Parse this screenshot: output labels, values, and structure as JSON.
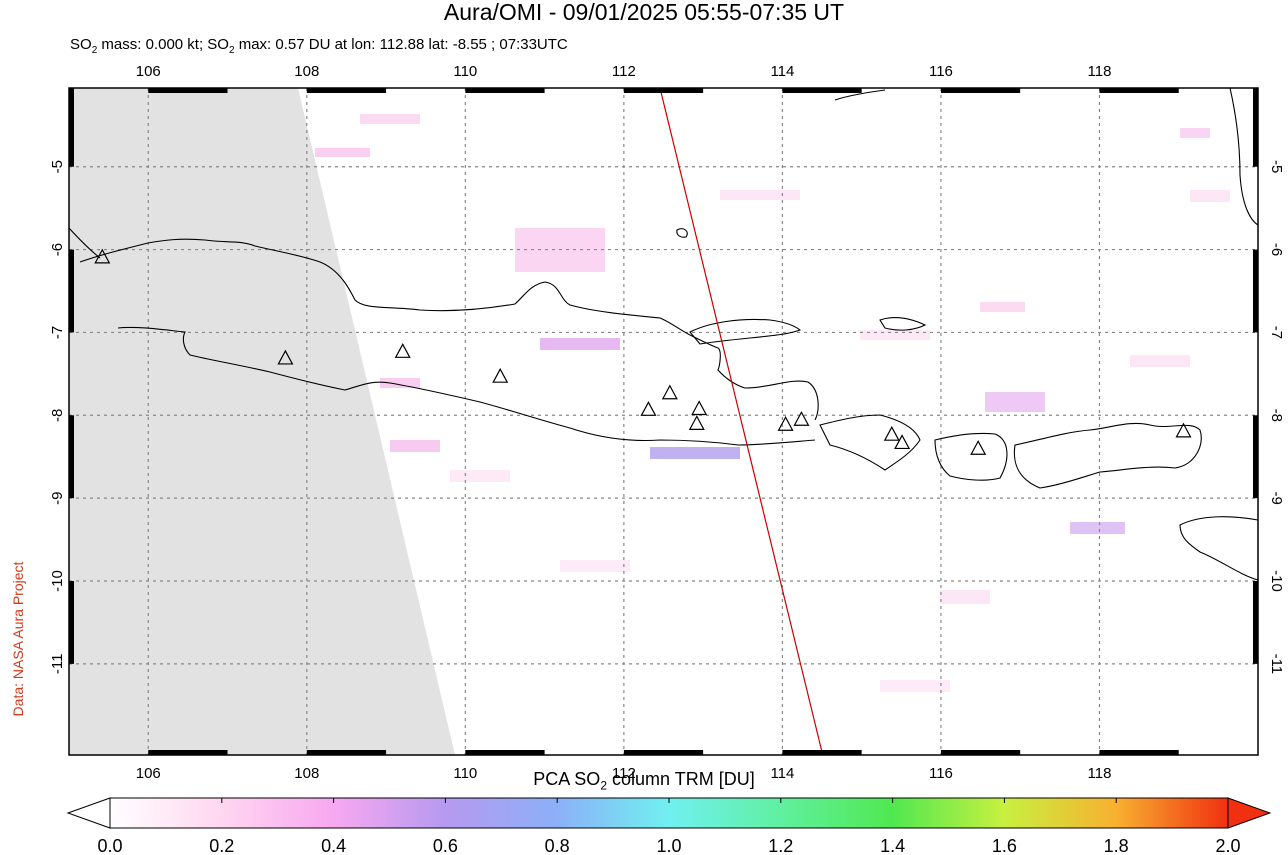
{
  "title": "Aura/OMI - 09/01/2025 05:55-07:35 UT",
  "subtitle": {
    "prefix": "SO",
    "sub": "2",
    "mid": " mass: 0.000 kt; SO",
    "sub2": "2",
    "suffix": " max: 0.57 DU at lon: 112.88 lat: -8.55 ; 07:33UTC"
  },
  "credit": "Data: NASA Aura Project",
  "colorbar": {
    "label_prefix": "PCA SO",
    "label_sub": "2",
    "label_suffix": " column TRM [DU]",
    "ticks": [
      "0.0",
      "0.2",
      "0.4",
      "0.6",
      "0.8",
      "1.0",
      "1.2",
      "1.4",
      "1.6",
      "1.8",
      "2.0"
    ],
    "colors": [
      "#ffffff",
      "#ffd6f0",
      "#f7a8f0",
      "#b69af0",
      "#8cb0f8",
      "#70f0f0",
      "#60f0a0",
      "#50e850",
      "#c8f040",
      "#f8b030",
      "#f03010"
    ]
  },
  "map": {
    "lon_ticks": [
      "106",
      "108",
      "110",
      "112",
      "114",
      "116",
      "118"
    ],
    "lat_ticks": [
      "-5",
      "-6",
      "-7",
      "-8",
      "-9",
      "-10",
      "-11"
    ],
    "lon_range": [
      105,
      120
    ],
    "lat_range": [
      -12.1,
      -4.05
    ],
    "volcanoes": [
      [
        105.42,
        -6.1
      ],
      [
        107.73,
        -7.32
      ],
      [
        109.21,
        -7.24
      ],
      [
        110.44,
        -7.54
      ],
      [
        112.31,
        -7.94
      ],
      [
        112.58,
        -7.74
      ],
      [
        112.95,
        -7.93
      ],
      [
        112.92,
        -8.11
      ],
      [
        114.04,
        -8.12
      ],
      [
        114.24,
        -8.06
      ],
      [
        115.38,
        -8.24
      ],
      [
        115.51,
        -8.34
      ],
      [
        116.47,
        -8.41
      ],
      [
        119.06,
        -8.2
      ]
    ],
    "max_location": [
      112.88,
      -8.55
    ]
  }
}
